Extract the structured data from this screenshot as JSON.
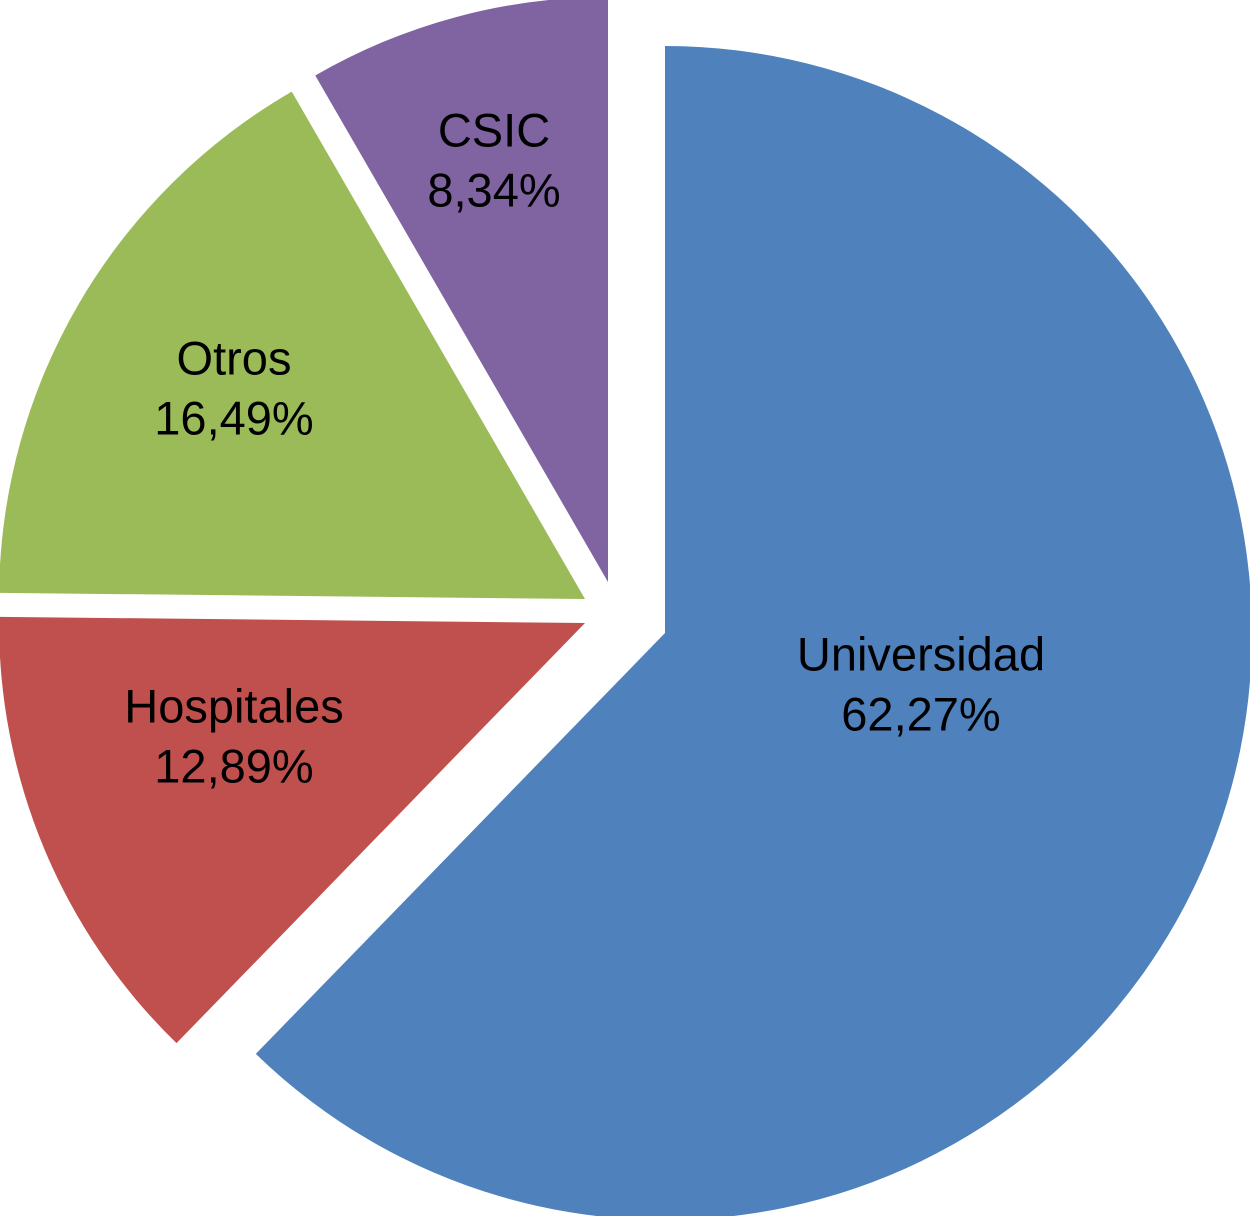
{
  "chart_data": {
    "type": "pie",
    "title": "",
    "slices": [
      {
        "name": "Universidad",
        "value": 62.27,
        "label": "62,27%",
        "color": "#4F81BD"
      },
      {
        "name": "Hospitales",
        "value": 12.89,
        "label": "12,89%",
        "color": "#C0504D"
      },
      {
        "name": "Otros",
        "value": 16.49,
        "label": "16,49%",
        "color": "#9BBB59"
      },
      {
        "name": "CSIC",
        "value": 8.34,
        "label": "8,34%",
        "color": "#8064A2"
      }
    ],
    "start_angle": "12 o'clock",
    "direction": "clockwise",
    "exploded": true,
    "legend": "none",
    "data_labels": "category name and percentage inside slice"
  }
}
